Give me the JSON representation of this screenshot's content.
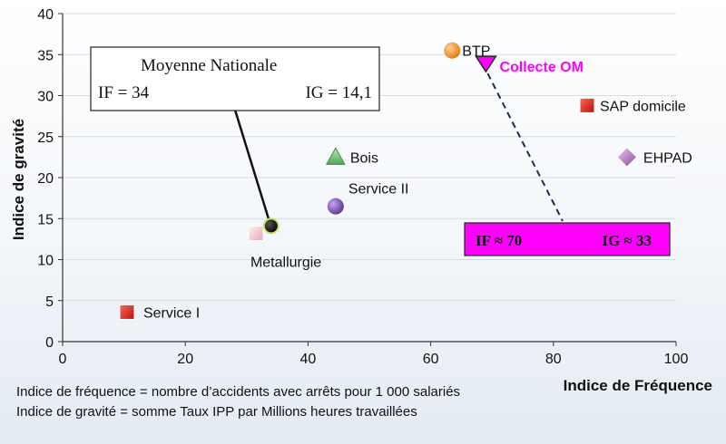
{
  "chart_data": {
    "type": "scatter",
    "xlabel": "Indice de Fréquence",
    "ylabel": "Indice de gravité",
    "xlim": [
      0,
      100
    ],
    "ylim": [
      0,
      40
    ],
    "xticks": [
      0,
      20,
      40,
      60,
      80,
      100
    ],
    "yticks": [
      0,
      5,
      10,
      15,
      20,
      25,
      30,
      35,
      40
    ],
    "grid": "horizontal",
    "points": [
      {
        "label": "BTP",
        "x": 63.5,
        "y": 35.5,
        "marker": "sphere",
        "color": "#f08a24"
      },
      {
        "label": "Collecte OM",
        "x": 69,
        "y": 33.8,
        "marker": "triangle-down",
        "color": "#ff00ff",
        "highlight": true
      },
      {
        "label": "SAP domicile",
        "x": 85.5,
        "y": 28.8,
        "marker": "square",
        "color": "#e02020"
      },
      {
        "label": "EHPAD",
        "x": 92,
        "y": 22.5,
        "marker": "diamond",
        "color": "#b06ab0"
      },
      {
        "label": "Bois",
        "x": 44.5,
        "y": 22.5,
        "marker": "triangle",
        "color": "#6cc070"
      },
      {
        "label": "Service II",
        "x": 44.5,
        "y": 16.5,
        "marker": "sphere",
        "color": "#7a4fb0"
      },
      {
        "label": "Metallurgie",
        "x": 31.5,
        "y": 13.2,
        "marker": "square",
        "color": "#f3c8cf"
      },
      {
        "label": "Service I",
        "x": 10.5,
        "y": 3.6,
        "marker": "square",
        "color": "#e02020"
      }
    ],
    "national_average": {
      "label": "Moyenne Nationale",
      "x": 34,
      "y": 14.1,
      "color": "#111111"
    },
    "callouts": {
      "national": {
        "title": "Moyenne Nationale",
        "if_text": "IF = 34",
        "ig_text": "IG = 14,1"
      },
      "collecte": {
        "if_text": "IF ≈ 70",
        "ig_text": "IG ≈ 33"
      }
    }
  },
  "footnotes": {
    "line1": "Indice de fréquence = nombre d’accidents avec arrêts pour 1 000 salariés",
    "line2": "Indice de gravité = somme Taux IPP par Millions heures travaillées"
  },
  "colors": {
    "grid": "#d5dbe3",
    "axis": "#333333",
    "highlight": "#ff00ff",
    "dash": "#1a2a5a"
  }
}
